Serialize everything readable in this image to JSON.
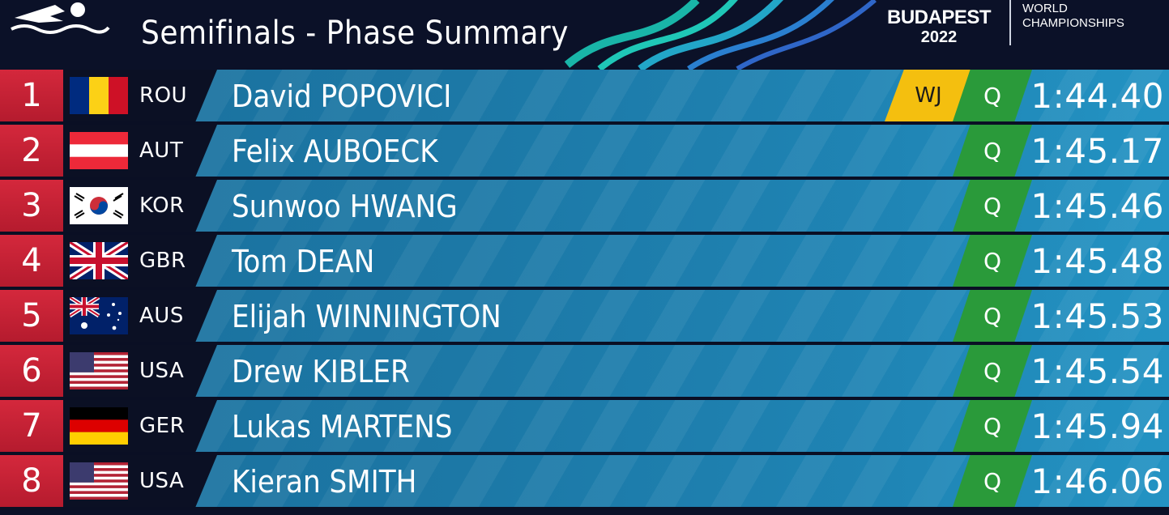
{
  "header": {
    "title": "Semifinals - Phase Summary",
    "brand_city": "BUDAPEST",
    "brand_year": "2022",
    "brand_line1": "WORLD",
    "brand_line2": "CHAMPIONSHIPS",
    "logo_icon": "swimmer-icon"
  },
  "colors": {
    "rank_bg": "#c8223a",
    "wj_badge": "#f4bf0f",
    "q_badge": "#2a9a3a",
    "row_blue": "#1c78a6"
  },
  "results": [
    {
      "rank": "1",
      "code": "ROU",
      "name": "David POPOVICI",
      "record": "WJ",
      "qualified": "Q",
      "time": "1:44.40",
      "flag": "ROU"
    },
    {
      "rank": "2",
      "code": "AUT",
      "name": "Felix AUBOECK",
      "record": "",
      "qualified": "Q",
      "time": "1:45.17",
      "flag": "AUT"
    },
    {
      "rank": "3",
      "code": "KOR",
      "name": "Sunwoo HWANG",
      "record": "",
      "qualified": "Q",
      "time": "1:45.46",
      "flag": "KOR"
    },
    {
      "rank": "4",
      "code": "GBR",
      "name": "Tom DEAN",
      "record": "",
      "qualified": "Q",
      "time": "1:45.48",
      "flag": "GBR"
    },
    {
      "rank": "5",
      "code": "AUS",
      "name": "Elijah WINNINGTON",
      "record": "",
      "qualified": "Q",
      "time": "1:45.53",
      "flag": "AUS"
    },
    {
      "rank": "6",
      "code": "USA",
      "name": "Drew KIBLER",
      "record": "",
      "qualified": "Q",
      "time": "1:45.54",
      "flag": "USA"
    },
    {
      "rank": "7",
      "code": "GER",
      "name": "Lukas MARTENS",
      "record": "",
      "qualified": "Q",
      "time": "1:45.94",
      "flag": "GER"
    },
    {
      "rank": "8",
      "code": "USA",
      "name": "Kieran SMITH",
      "record": "",
      "qualified": "Q",
      "time": "1:46.06",
      "flag": "USA"
    }
  ]
}
